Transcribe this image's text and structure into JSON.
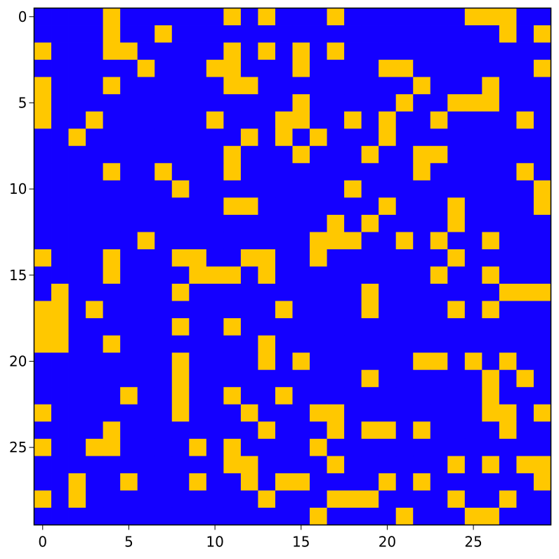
{
  "chart_data": {
    "type": "heatmap",
    "title": "",
    "xlabel": "",
    "ylabel": "",
    "rows": 30,
    "cols": 30,
    "x_ticks": [
      0,
      5,
      10,
      15,
      20,
      25
    ],
    "y_ticks": [
      0,
      5,
      10,
      15,
      20,
      25
    ],
    "x_tick_labels": [
      "0",
      "5",
      "10",
      "15",
      "20",
      "25"
    ],
    "y_tick_labels": [
      "0",
      "5",
      "10",
      "15",
      "20",
      "25"
    ],
    "colors": {
      "0": "#1400ff",
      "1": "#ffc800"
    },
    "grid": false,
    "values": [
      [
        0,
        0,
        0,
        0,
        1,
        0,
        0,
        0,
        0,
        0,
        0,
        1,
        0,
        1,
        0,
        0,
        0,
        1,
        0,
        0,
        0,
        0,
        0,
        0,
        0,
        1,
        1,
        1,
        0,
        0
      ],
      [
        0,
        0,
        0,
        0,
        1,
        0,
        0,
        1,
        0,
        0,
        0,
        0,
        0,
        0,
        0,
        0,
        0,
        0,
        0,
        0,
        0,
        0,
        0,
        0,
        0,
        0,
        0,
        1,
        0,
        1
      ],
      [
        1,
        0,
        0,
        0,
        1,
        1,
        0,
        0,
        0,
        0,
        0,
        1,
        0,
        1,
        0,
        1,
        0,
        1,
        0,
        0,
        0,
        0,
        0,
        0,
        0,
        0,
        0,
        0,
        0,
        0
      ],
      [
        0,
        0,
        0,
        0,
        0,
        0,
        1,
        0,
        0,
        0,
        1,
        1,
        0,
        0,
        0,
        1,
        0,
        0,
        0,
        0,
        1,
        1,
        0,
        0,
        0,
        0,
        0,
        0,
        0,
        1
      ],
      [
        1,
        0,
        0,
        0,
        1,
        0,
        0,
        0,
        0,
        0,
        0,
        1,
        1,
        0,
        0,
        0,
        0,
        0,
        0,
        0,
        0,
        0,
        1,
        0,
        0,
        0,
        1,
        0,
        0,
        0
      ],
      [
        1,
        0,
        0,
        0,
        0,
        0,
        0,
        0,
        0,
        0,
        0,
        0,
        0,
        0,
        0,
        1,
        0,
        0,
        0,
        0,
        0,
        1,
        0,
        0,
        1,
        1,
        1,
        0,
        0,
        0
      ],
      [
        1,
        0,
        0,
        1,
        0,
        0,
        0,
        0,
        0,
        0,
        1,
        0,
        0,
        0,
        1,
        1,
        0,
        0,
        1,
        0,
        1,
        0,
        0,
        1,
        0,
        0,
        0,
        0,
        1,
        0
      ],
      [
        0,
        0,
        1,
        0,
        0,
        0,
        0,
        0,
        0,
        0,
        0,
        0,
        1,
        0,
        1,
        0,
        1,
        0,
        0,
        0,
        1,
        0,
        0,
        0,
        0,
        0,
        0,
        0,
        0,
        0
      ],
      [
        0,
        0,
        0,
        0,
        0,
        0,
        0,
        0,
        0,
        0,
        0,
        1,
        0,
        0,
        0,
        1,
        0,
        0,
        0,
        1,
        0,
        0,
        1,
        1,
        0,
        0,
        0,
        0,
        0,
        0
      ],
      [
        0,
        0,
        0,
        0,
        1,
        0,
        0,
        1,
        0,
        0,
        0,
        1,
        0,
        0,
        0,
        0,
        0,
        0,
        0,
        0,
        0,
        0,
        1,
        0,
        0,
        0,
        0,
        0,
        1,
        0
      ],
      [
        0,
        0,
        0,
        0,
        0,
        0,
        0,
        0,
        1,
        0,
        0,
        0,
        0,
        0,
        0,
        0,
        0,
        0,
        1,
        0,
        0,
        0,
        0,
        0,
        0,
        0,
        0,
        0,
        0,
        1
      ],
      [
        0,
        0,
        0,
        0,
        0,
        0,
        0,
        0,
        0,
        0,
        0,
        1,
        1,
        0,
        0,
        0,
        0,
        0,
        0,
        0,
        1,
        0,
        0,
        0,
        1,
        0,
        0,
        0,
        0,
        1
      ],
      [
        0,
        0,
        0,
        0,
        0,
        0,
        0,
        0,
        0,
        0,
        0,
        0,
        0,
        0,
        0,
        0,
        0,
        1,
        0,
        1,
        0,
        0,
        0,
        0,
        1,
        0,
        0,
        0,
        0,
        0
      ],
      [
        0,
        0,
        0,
        0,
        0,
        0,
        1,
        0,
        0,
        0,
        0,
        0,
        0,
        0,
        0,
        0,
        1,
        1,
        1,
        0,
        0,
        1,
        0,
        1,
        0,
        0,
        1,
        0,
        0,
        0
      ],
      [
        1,
        0,
        0,
        0,
        1,
        0,
        0,
        0,
        1,
        1,
        0,
        0,
        1,
        1,
        0,
        0,
        1,
        0,
        0,
        0,
        0,
        0,
        0,
        0,
        1,
        0,
        0,
        0,
        0,
        0
      ],
      [
        0,
        0,
        0,
        0,
        1,
        0,
        0,
        0,
        0,
        1,
        1,
        1,
        0,
        1,
        0,
        0,
        0,
        0,
        0,
        0,
        0,
        0,
        0,
        1,
        0,
        0,
        1,
        0,
        0,
        0
      ],
      [
        0,
        1,
        0,
        0,
        0,
        0,
        0,
        0,
        1,
        0,
        0,
        0,
        0,
        0,
        0,
        0,
        0,
        0,
        0,
        1,
        0,
        0,
        0,
        0,
        0,
        0,
        0,
        1,
        1,
        1
      ],
      [
        1,
        1,
        0,
        1,
        0,
        0,
        0,
        0,
        0,
        0,
        0,
        0,
        0,
        0,
        1,
        0,
        0,
        0,
        0,
        1,
        0,
        0,
        0,
        0,
        1,
        0,
        1,
        0,
        0,
        0
      ],
      [
        1,
        1,
        0,
        0,
        0,
        0,
        0,
        0,
        1,
        0,
        0,
        1,
        0,
        0,
        0,
        0,
        0,
        0,
        0,
        0,
        0,
        0,
        0,
        0,
        0,
        0,
        0,
        0,
        0,
        0
      ],
      [
        1,
        1,
        0,
        0,
        1,
        0,
        0,
        0,
        0,
        0,
        0,
        0,
        0,
        1,
        0,
        0,
        0,
        0,
        0,
        0,
        0,
        0,
        0,
        0,
        0,
        0,
        0,
        0,
        0,
        0
      ],
      [
        0,
        0,
        0,
        0,
        0,
        0,
        0,
        0,
        1,
        0,
        0,
        0,
        0,
        1,
        0,
        1,
        0,
        0,
        0,
        0,
        0,
        0,
        1,
        1,
        0,
        1,
        0,
        1,
        0,
        0
      ],
      [
        0,
        0,
        0,
        0,
        0,
        0,
        0,
        0,
        1,
        0,
        0,
        0,
        0,
        0,
        0,
        0,
        0,
        0,
        0,
        1,
        0,
        0,
        0,
        0,
        0,
        0,
        1,
        0,
        1,
        0
      ],
      [
        0,
        0,
        0,
        0,
        0,
        1,
        0,
        0,
        1,
        0,
        0,
        1,
        0,
        0,
        1,
        0,
        0,
        0,
        0,
        0,
        0,
        0,
        0,
        0,
        0,
        0,
        1,
        0,
        0,
        0
      ],
      [
        1,
        0,
        0,
        0,
        0,
        0,
        0,
        0,
        1,
        0,
        0,
        0,
        1,
        0,
        0,
        0,
        1,
        1,
        0,
        0,
        0,
        0,
        0,
        0,
        0,
        0,
        1,
        1,
        0,
        1
      ],
      [
        0,
        0,
        0,
        0,
        1,
        0,
        0,
        0,
        0,
        0,
        0,
        0,
        0,
        1,
        0,
        0,
        0,
        1,
        0,
        1,
        1,
        0,
        1,
        0,
        0,
        0,
        0,
        1,
        0,
        0
      ],
      [
        1,
        0,
        0,
        1,
        1,
        0,
        0,
        0,
        0,
        1,
        0,
        1,
        0,
        0,
        0,
        0,
        1,
        0,
        0,
        0,
        0,
        0,
        0,
        0,
        0,
        0,
        0,
        0,
        0,
        0
      ],
      [
        0,
        0,
        0,
        0,
        0,
        0,
        0,
        0,
        0,
        0,
        0,
        1,
        1,
        0,
        0,
        0,
        0,
        1,
        0,
        0,
        0,
        0,
        0,
        0,
        1,
        0,
        1,
        0,
        1,
        1
      ],
      [
        0,
        0,
        1,
        0,
        0,
        1,
        0,
        0,
        0,
        1,
        0,
        0,
        1,
        0,
        1,
        1,
        0,
        0,
        0,
        0,
        1,
        0,
        1,
        0,
        0,
        0,
        0,
        0,
        0,
        1
      ],
      [
        1,
        0,
        1,
        0,
        0,
        0,
        0,
        0,
        0,
        0,
        0,
        0,
        0,
        1,
        0,
        0,
        0,
        1,
        1,
        1,
        0,
        0,
        0,
        0,
        1,
        0,
        0,
        1,
        0,
        0
      ],
      [
        0,
        0,
        0,
        0,
        0,
        0,
        0,
        0,
        0,
        0,
        0,
        0,
        0,
        0,
        0,
        0,
        1,
        0,
        0,
        0,
        0,
        1,
        0,
        0,
        0,
        1,
        1,
        0,
        0,
        0
      ]
    ]
  }
}
